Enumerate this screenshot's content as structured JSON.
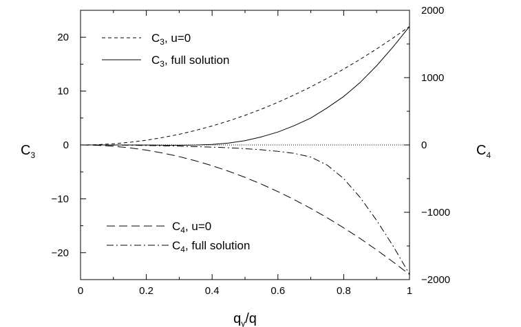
{
  "chart_data": {
    "type": "line",
    "xlabel": "q_y/q",
    "xlabel_main": "q",
    "xlabel_sub": "y",
    "xlabel_tail": "/q",
    "ylabel_left": "C3",
    "ylabel_left_main": "C",
    "ylabel_left_sub": "3",
    "ylabel_right": "C4",
    "ylabel_right_main": "C",
    "ylabel_right_sub": "4",
    "xlim": [
      0,
      1
    ],
    "ylim_left": [
      -25,
      25
    ],
    "ylim_right": [
      -2000,
      2000
    ],
    "x_ticks": [
      0,
      0.2,
      0.4,
      0.6,
      0.8,
      1
    ],
    "x_tick_labels": [
      "0",
      "0.2",
      "0.4",
      "0.6",
      "0.8",
      "1"
    ],
    "y_left_ticks": [
      -20,
      -10,
      0,
      10,
      20
    ],
    "y_left_tick_labels": [
      "−20",
      "−10",
      "0",
      "10",
      "20"
    ],
    "y_right_ticks": [
      -2000,
      -1000,
      0,
      1000,
      2000
    ],
    "y_right_tick_labels": [
      "−2000",
      "−1000",
      "0",
      "1000",
      "2000"
    ],
    "grid": false,
    "legend_top": {
      "placement": "top-left",
      "entries": [
        {
          "main": "C",
          "sub": "3",
          "rest": ", u=0",
          "style": "short-dash"
        },
        {
          "main": "C",
          "sub": "3",
          "rest": ", full solution",
          "style": "solid"
        }
      ]
    },
    "legend_bottom": {
      "placement": "bottom-left",
      "entries": [
        {
          "main": "C",
          "sub": "4",
          "rest": ", u=0",
          "style": "long-dash"
        },
        {
          "main": "C",
          "sub": "4",
          "rest": ", full solution",
          "style": "dash-dot"
        }
      ]
    },
    "x": [
      0,
      0.05,
      0.1,
      0.15,
      0.2,
      0.25,
      0.3,
      0.35,
      0.4,
      0.45,
      0.5,
      0.55,
      0.6,
      0.65,
      0.7,
      0.75,
      0.8,
      0.85,
      0.9,
      0.95,
      1.0
    ],
    "series": [
      {
        "name": "C3, u=0",
        "axis": "left",
        "style": "short-dash",
        "values": [
          0,
          0.05,
          0.22,
          0.5,
          0.88,
          1.38,
          1.98,
          2.7,
          3.52,
          4.46,
          5.5,
          6.66,
          7.92,
          9.3,
          10.78,
          12.38,
          14.08,
          15.9,
          17.82,
          19.86,
          22.0
        ]
      },
      {
        "name": "C3, full solution",
        "axis": "left",
        "style": "solid",
        "values": [
          0,
          0.0,
          0.0,
          0.0,
          -0.02,
          -0.05,
          -0.06,
          -0.02,
          0.1,
          0.35,
          0.8,
          1.5,
          2.4,
          3.6,
          5.0,
          6.9,
          9.0,
          11.6,
          14.7,
          18.2,
          22.0
        ]
      },
      {
        "name": "zero line",
        "axis": "left",
        "style": "dotted",
        "values": [
          0,
          0,
          0,
          0,
          0,
          0,
          0,
          0,
          0,
          0,
          0,
          0,
          0,
          0,
          0,
          0,
          0,
          0,
          0,
          0,
          0
        ]
      },
      {
        "name": "C4, u=0",
        "axis": "right",
        "style": "long-dash",
        "values": [
          0,
          -5,
          -19,
          -43,
          -77,
          -120,
          -173,
          -236,
          -308,
          -390,
          -481,
          -582,
          -693,
          -813,
          -943,
          -1082,
          -1231,
          -1390,
          -1559,
          -1737,
          -1925
        ]
      },
      {
        "name": "C4, full solution",
        "axis": "right",
        "style": "dash-dot",
        "values": [
          0,
          0,
          -2,
          -4,
          -8,
          -12,
          -18,
          -25,
          -32,
          -42,
          -55,
          -72,
          -95,
          -125,
          -180,
          -300,
          -500,
          -780,
          -1120,
          -1500,
          -1920
        ]
      }
    ]
  }
}
